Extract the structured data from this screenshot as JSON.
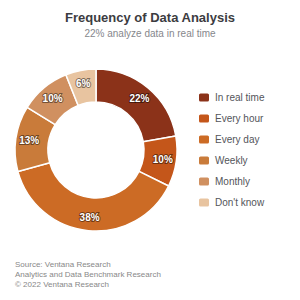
{
  "chart_data": {
    "type": "pie",
    "title": "Frequency of Data Analysis",
    "subtitle": "22% analyze data in real time",
    "categories": [
      "In real time",
      "Every hour",
      "Every day",
      "Weekly",
      "Monthly",
      "Don't know"
    ],
    "values": [
      22,
      10,
      38,
      13,
      10,
      6
    ],
    "value_labels": [
      "22%",
      "10%",
      "38%",
      "13%",
      "10%",
      "6%"
    ],
    "colors": [
      "#8B3219",
      "#C4561A",
      "#CC6B25",
      "#C97B3A",
      "#D09060",
      "#E8C4A0"
    ],
    "data_labels": true,
    "legend": "right",
    "annotations": [
      "Source: Ventana Research\nAnalytics and Data Benchmark Research\n© 2022 Ventana Research"
    ]
  }
}
